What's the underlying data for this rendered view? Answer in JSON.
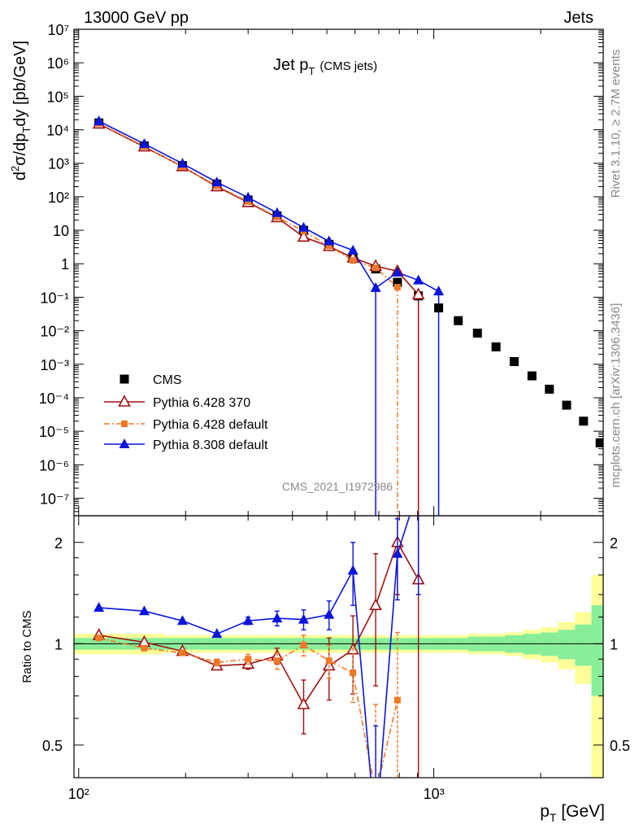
{
  "header": {
    "left": "13000 GeV pp",
    "right": "Jets"
  },
  "side_labels": {
    "rivet": "Rivet 3.1.10, ≥ 2.7M events",
    "mcplots": "mcplots.cern.ch [arXiv:1306.3436]"
  },
  "watermark": "CMS_2021_I1972986",
  "chart_data": [
    {
      "type": "scatter",
      "panel": "main",
      "title": "Jet p_T (CMS jets)",
      "title_main": "Jet p",
      "title_sub": "T",
      "title_extra": "(CMS jets)",
      "xlabel": "p_T [GeV]",
      "ylabel": "d²σ/dp_T dy [pb/GeV]",
      "xscale": "log",
      "yscale": "log",
      "xlim": [
        97,
        3000
      ],
      "ylim": [
        3e-08,
        10000000.0
      ],
      "x_tick_labels": [
        "10²",
        "10³"
      ],
      "y_tick_labels": [
        "10⁻⁷",
        "10⁻⁶",
        "10⁻⁵",
        "10⁻⁴",
        "10⁻³",
        "10⁻²",
        "10⁻¹",
        "1",
        "10",
        "10²",
        "10³",
        "10⁴",
        "10⁵",
        "10⁶",
        "10⁷"
      ],
      "legend_position": "bottom-left",
      "series": [
        {
          "name": "CMS",
          "color": "#000000",
          "marker": "square",
          "points": [
            [
              114,
              16000
            ],
            [
              153,
              3300
            ],
            [
              196,
              850
            ],
            [
              245,
              240
            ],
            [
              300,
              80
            ],
            [
              362,
              27
            ],
            [
              430,
              10
            ],
            [
              507,
              3.8
            ],
            [
              592,
              1.5
            ],
            [
              686,
              0.7
            ],
            [
              790,
              0.28
            ],
            [
              905,
              0.11
            ],
            [
              1032,
              0.048
            ],
            [
              1172,
              0.02
            ],
            [
              1327,
              0.0085
            ],
            [
              1497,
              0.0033
            ],
            [
              1684,
              0.0012
            ],
            [
              1890,
              0.00045
            ],
            [
              2116,
              0.00018
            ],
            [
              2366,
              6e-05
            ],
            [
              2640,
              2e-05
            ],
            [
              2940,
              4.5e-06
            ]
          ]
        },
        {
          "name": "Pythia 6.428 370",
          "color": "#a01010",
          "marker": "triangle-open",
          "points": [
            [
              114,
              15000
            ],
            [
              153,
              3100
            ],
            [
              196,
              800
            ],
            [
              245,
              200
            ],
            [
              300,
              68
            ],
            [
              362,
              24
            ],
            [
              430,
              6.3
            ],
            [
              507,
              3.3
            ],
            [
              592,
              1.5
            ],
            [
              686,
              0.85
            ],
            [
              790,
              0.6
            ],
            [
              905,
              0.12
            ]
          ]
        },
        {
          "name": "Pythia 6.428 default",
          "color": "#f07828",
          "marker": "square-small",
          "points": [
            [
              114,
              15500
            ],
            [
              153,
              3200
            ],
            [
              196,
              790
            ],
            [
              245,
              210
            ],
            [
              300,
              72
            ],
            [
              362,
              25
            ],
            [
              430,
              9.5
            ],
            [
              507,
              3.4
            ],
            [
              592,
              1.25
            ],
            [
              686,
              0.75
            ],
            [
              790,
              0.2
            ]
          ]
        },
        {
          "name": "Pythia 8.308 default",
          "color": "#0a14dc",
          "marker": "triangle",
          "points": [
            [
              114,
              18000
            ],
            [
              153,
              3800
            ],
            [
              196,
              980
            ],
            [
              245,
              270
            ],
            [
              300,
              95
            ],
            [
              362,
              33
            ],
            [
              430,
              12
            ],
            [
              507,
              4.7
            ],
            [
              592,
              2.5
            ],
            [
              686,
              0.19
            ],
            [
              790,
              0.55
            ],
            [
              905,
              0.32
            ],
            [
              1032,
              0.15
            ]
          ]
        }
      ]
    },
    {
      "type": "line",
      "panel": "ratio",
      "ylabel": "Ratio to CMS",
      "xscale": "log",
      "yscale": "log",
      "xlim": [
        97,
        3000
      ],
      "ylim": [
        0.4,
        2.4
      ],
      "x_tick_labels": [
        "10²",
        "10³"
      ],
      "y_tick_values": [
        0.5,
        1,
        2
      ],
      "y_tick_labels": [
        "0.5",
        "1",
        "2"
      ],
      "uncertainty_band_edges": [
        97,
        134,
        174,
        220,
        272,
        331,
        396,
        468,
        548,
        638,
        737,
        846,
        968,
        1101,
        1248,
        1410,
        1588,
        1785,
        2000,
        2240,
        2500,
        2780,
        3000
      ],
      "uncertainty_yellow": [
        0.07,
        0.07,
        0.06,
        0.06,
        0.06,
        0.06,
        0.06,
        0.06,
        0.06,
        0.06,
        0.06,
        0.06,
        0.06,
        0.06,
        0.07,
        0.07,
        0.08,
        0.1,
        0.12,
        0.16,
        0.24,
        0.6
      ],
      "uncertainty_green": [
        0.04,
        0.04,
        0.04,
        0.04,
        0.04,
        0.04,
        0.04,
        0.04,
        0.04,
        0.04,
        0.04,
        0.04,
        0.04,
        0.04,
        0.05,
        0.05,
        0.06,
        0.07,
        0.08,
        0.1,
        0.14,
        0.3
      ],
      "series": [
        {
          "name": "Pythia 6.428 370",
          "color": "#a01010",
          "points": [
            [
              114,
              1.06,
              0.0
            ],
            [
              153,
              1.01,
              0.0
            ],
            [
              196,
              0.95,
              0.0
            ],
            [
              245,
              0.86,
              0.02
            ],
            [
              300,
              0.87,
              0.03
            ],
            [
              362,
              0.92,
              0.05
            ],
            [
              430,
              0.66,
              0.12
            ],
            [
              507,
              0.86,
              0.18
            ],
            [
              592,
              0.96,
              0.25
            ],
            [
              686,
              1.3,
              0.55
            ],
            [
              790,
              2.0,
              0.6
            ],
            [
              905,
              1.55,
              2.0
            ]
          ]
        },
        {
          "name": "Pythia 6.428 default",
          "color": "#f07828",
          "points": [
            [
              114,
              1.04,
              0.0
            ],
            [
              153,
              0.97,
              0.0
            ],
            [
              196,
              0.94,
              0.0
            ],
            [
              245,
              0.88,
              0.02
            ],
            [
              300,
              0.9,
              0.03
            ],
            [
              362,
              0.89,
              0.05
            ],
            [
              430,
              0.99,
              0.07
            ],
            [
              507,
              0.89,
              0.1
            ],
            [
              592,
              0.82,
              0.15
            ],
            [
              686,
              0.36,
              0.3
            ],
            [
              790,
              0.68,
              0.4
            ]
          ]
        },
        {
          "name": "Pythia 8.308 default",
          "color": "#0a14dc",
          "points": [
            [
              114,
              1.28,
              0.0
            ],
            [
              153,
              1.25,
              0.0
            ],
            [
              196,
              1.17,
              0.0
            ],
            [
              245,
              1.07,
              0.0
            ],
            [
              300,
              1.17,
              0.03
            ],
            [
              362,
              1.19,
              0.06
            ],
            [
              430,
              1.18,
              0.08
            ],
            [
              507,
              1.22,
              0.12
            ],
            [
              592,
              1.65,
              0.35
            ],
            [
              686,
              0.27,
              0.3
            ],
            [
              790,
              1.85,
              0.5
            ],
            [
              905,
              2.9,
              1.5
            ]
          ]
        }
      ]
    }
  ]
}
